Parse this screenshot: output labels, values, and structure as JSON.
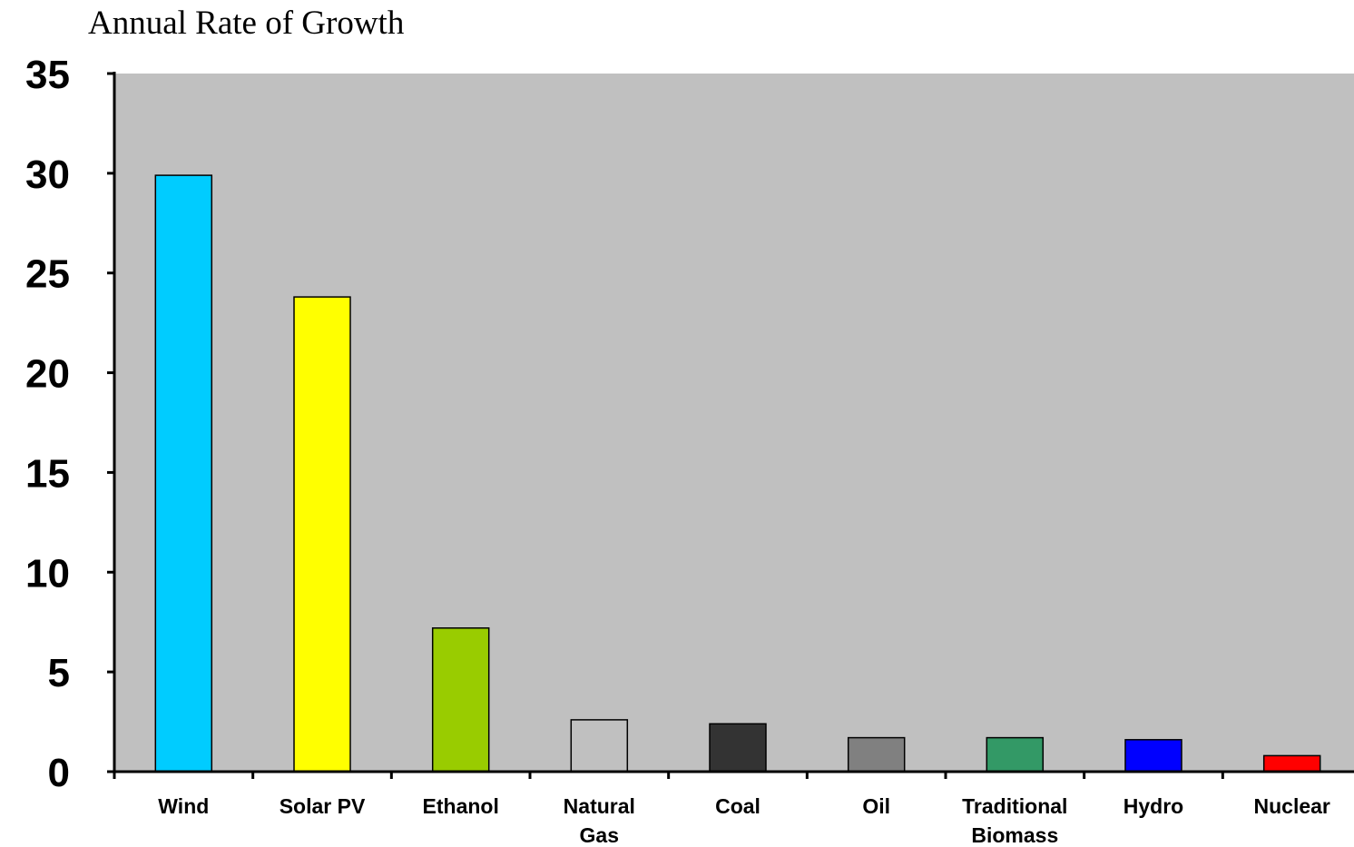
{
  "chart_data": {
    "type": "bar",
    "title": "Annual Rate of Growth",
    "xlabel": "",
    "ylabel": "",
    "categories": [
      "Wind",
      "Solar PV",
      "Ethanol",
      "Natural Gas",
      "Coal",
      "Oil",
      "Traditional Biomass",
      "Hydro",
      "Nuclear"
    ],
    "category_lines": [
      [
        "Wind"
      ],
      [
        "Solar PV"
      ],
      [
        "Ethanol"
      ],
      [
        "Natural",
        "Gas"
      ],
      [
        "Coal"
      ],
      [
        "Oil"
      ],
      [
        "Traditional",
        "Biomass"
      ],
      [
        "Hydro"
      ],
      [
        "Nuclear"
      ]
    ],
    "values": [
      29.9,
      23.8,
      7.2,
      2.6,
      2.4,
      1.7,
      1.7,
      1.6,
      0.8
    ],
    "bar_colors": [
      "#00CCFF",
      "#FFFF00",
      "#99CC00",
      "#C0C0C0",
      "#333333",
      "#808080",
      "#339966",
      "#0000FF",
      "#FF0000"
    ],
    "ylim": [
      0,
      35
    ],
    "yticks": [
      0,
      5,
      10,
      15,
      20,
      25,
      30,
      35
    ],
    "plot_background": "#C0C0C0",
    "grid": false,
    "legend": "none"
  }
}
